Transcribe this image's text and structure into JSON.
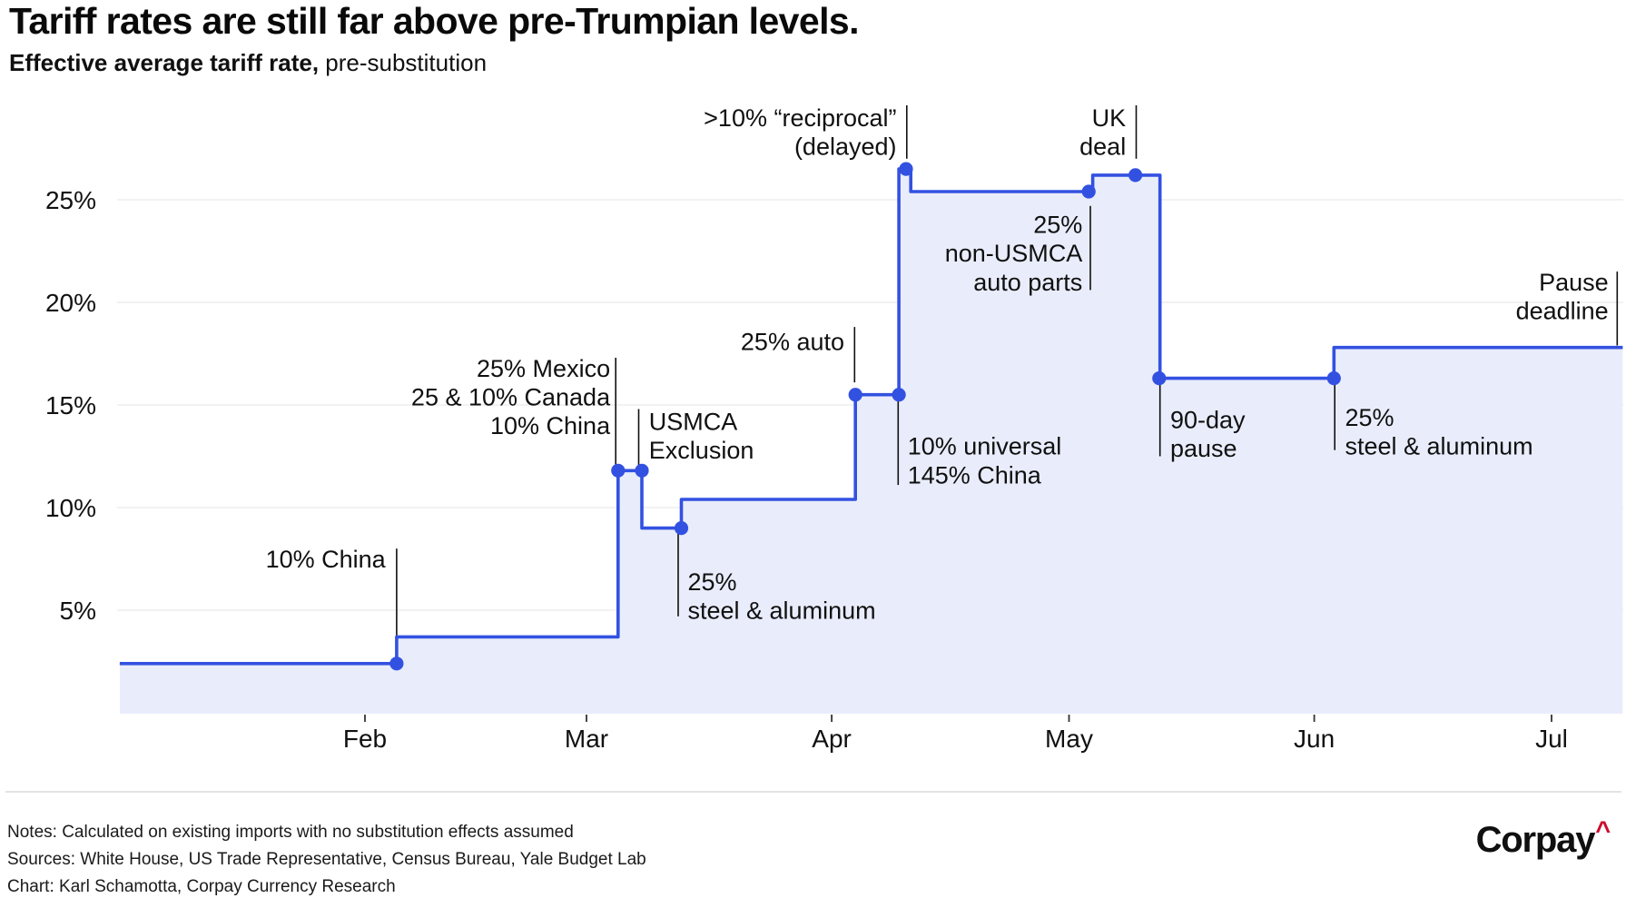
{
  "header": {
    "title": "Tariff rates are still far above pre-Trumpian levels.",
    "subtitle_bold": "Effective average tariff rate,",
    "subtitle_rest": " pre-substitution"
  },
  "footer": {
    "notes": "Notes: Calculated on existing imports with no substitution effects assumed",
    "sources": "Sources: White House, US Trade Representative, Census Bureau, Yale Budget Lab",
    "credit": "Chart: Karl Schamotta, Corpay Currency Research",
    "logo_text": "Corpay",
    "logo_caret": "^"
  },
  "chart_data": {
    "type": "area",
    "subtype": "step-after",
    "title": "Tariff rates are still far above pre-Trumpian levels.",
    "subtitle": "Effective average tariff rate, pre-substitution",
    "x_unit": "day_of_year_2025",
    "x_domain": [
      0,
      190
    ],
    "y_domain": [
      0,
      30
    ],
    "grid": true,
    "y_ticks": [
      {
        "rate": 5,
        "label": "5%"
      },
      {
        "rate": 10,
        "label": "10%"
      },
      {
        "rate": 15,
        "label": "15%"
      },
      {
        "rate": 20,
        "label": "20%"
      },
      {
        "rate": 25,
        "label": "25%"
      }
    ],
    "x_ticks": [
      {
        "day": 31,
        "label": "Feb"
      },
      {
        "day": 59,
        "label": "Mar"
      },
      {
        "day": 90,
        "label": "Apr"
      },
      {
        "day": 120,
        "label": "May"
      },
      {
        "day": 151,
        "label": "Jun"
      },
      {
        "day": 181,
        "label": "Jul"
      }
    ],
    "steps": [
      {
        "day": 0,
        "rate": 2.4
      },
      {
        "day": 35,
        "rate": 3.7
      },
      {
        "day": 63,
        "rate": 11.8
      },
      {
        "day": 66,
        "rate": 9.0
      },
      {
        "day": 71,
        "rate": 10.4
      },
      {
        "day": 93,
        "rate": 15.5
      },
      {
        "day": 98.5,
        "rate": 26.5
      },
      {
        "day": 100,
        "rate": 25.4
      },
      {
        "day": 123,
        "rate": 26.2
      },
      {
        "day": 131.5,
        "rate": 16.3
      },
      {
        "day": 153.5,
        "rate": 17.8
      }
    ],
    "end_day": 190,
    "markers": [
      {
        "day": 35,
        "rate": 2.4
      },
      {
        "day": 63,
        "rate": 11.8
      },
      {
        "day": 66,
        "rate": 11.8
      },
      {
        "day": 71,
        "rate": 9.0
      },
      {
        "day": 93,
        "rate": 15.5
      },
      {
        "day": 98.5,
        "rate": 15.5
      },
      {
        "day": 99.4,
        "rate": 26.5
      },
      {
        "day": 122.5,
        "rate": 25.4
      },
      {
        "day": 128.4,
        "rate": 26.2
      },
      {
        "day": 131.4,
        "rate": 16.3
      },
      {
        "day": 153.5,
        "rate": 16.3
      }
    ],
    "annotations": [
      {
        "id": "china-10",
        "lines": [
          "10% China"
        ],
        "align": "end",
        "line": {
          "day": 35,
          "from": 8.0,
          "to": 2.6
        },
        "label": {
          "day": 33.6,
          "rate": 7.5
        }
      },
      {
        "id": "mexico-canada-china",
        "lines": [
          "25% Mexico",
          "25 & 10% Canada",
          "10% China"
        ],
        "align": "end",
        "line": {
          "day": 62.7,
          "from": 17.3,
          "to": 12.0
        },
        "label": {
          "day": 62.0,
          "rate": 16.8
        }
      },
      {
        "id": "usmca-exclusion",
        "lines": [
          "USMCA",
          "Exclusion"
        ],
        "align": "start",
        "line": {
          "day": 65.6,
          "from": 14.8,
          "to": 12.0
        },
        "label": {
          "day": 66.9,
          "rate": 14.2
        }
      },
      {
        "id": "steel-aluminum-mar",
        "lines": [
          "25%",
          "steel & aluminum"
        ],
        "align": "start",
        "line": {
          "day": 70.6,
          "from": 8.9,
          "to": 4.7
        },
        "label": {
          "day": 71.8,
          "rate": 6.4
        }
      },
      {
        "id": "auto-25",
        "lines": [
          "25% auto"
        ],
        "align": "end",
        "line": {
          "day": 92.9,
          "from": 18.8,
          "to": 16.1
        },
        "label": {
          "day": 91.6,
          "rate": 18.1
        }
      },
      {
        "id": "universal-china",
        "lines": [
          "10% universal",
          "145% China"
        ],
        "align": "start",
        "line": {
          "day": 98.4,
          "from": 15.2,
          "to": 11.1
        },
        "label": {
          "day": 99.6,
          "rate": 13.0
        }
      },
      {
        "id": "reciprocal-delayed",
        "lines": [
          ">10% “reciprocal”",
          "(delayed)"
        ],
        "align": "end",
        "line": {
          "day": 99.5,
          "from": 29.6,
          "to": 27.0
        },
        "label": {
          "day": 98.2,
          "rate": 29.0
        }
      },
      {
        "id": "non-usmca-auto-parts",
        "lines": [
          "25%",
          "non-USMCA",
          "auto parts"
        ],
        "align": "end",
        "line": {
          "day": 122.7,
          "from": 24.7,
          "to": 20.6
        },
        "label": {
          "day": 121.7,
          "rate": 23.8
        }
      },
      {
        "id": "uk-deal",
        "lines": [
          "UK",
          "deal"
        ],
        "align": "end",
        "line": {
          "day": 128.5,
          "from": 29.6,
          "to": 27.0
        },
        "label": {
          "day": 127.2,
          "rate": 29.0
        }
      },
      {
        "id": "pause-90-day",
        "lines": [
          "90-day",
          "pause"
        ],
        "align": "start",
        "line": {
          "day": 131.5,
          "from": 16.1,
          "to": 12.5
        },
        "label": {
          "day": 132.8,
          "rate": 14.3
        }
      },
      {
        "id": "steel-aluminum-jun",
        "lines": [
          "25%",
          "steel & aluminum"
        ],
        "align": "start",
        "line": {
          "day": 153.6,
          "from": 16.1,
          "to": 12.8
        },
        "label": {
          "day": 154.9,
          "rate": 14.4
        }
      },
      {
        "id": "pause-deadline",
        "lines": [
          "Pause",
          "deadline"
        ],
        "align": "end",
        "line": {
          "day": 189.3,
          "from": 21.5,
          "to": 17.9
        },
        "label": {
          "day": 188.2,
          "rate": 21.0
        }
      }
    ],
    "colors": {
      "line": "#3351e1",
      "fill": "#e9edfb",
      "grid": "#ededed",
      "annotation": "#101010",
      "text": "#111111",
      "tick": "#333333"
    }
  }
}
